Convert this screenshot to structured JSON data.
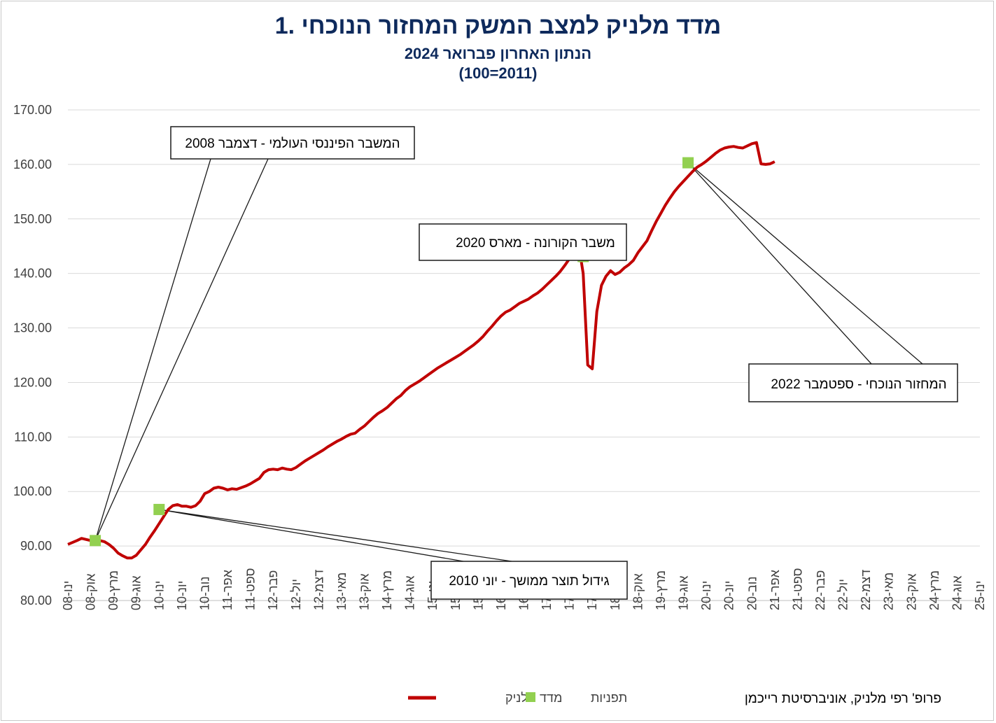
{
  "chart_data": {
    "type": "line",
    "title": "1. מדד מלניק למצב המשק המחזור הנוכחי",
    "subtitle": "הנתון האחרון פברואר 2024",
    "subtitle2": "(100=2011)",
    "ylim": [
      80,
      170
    ],
    "yticks": [
      "80.00",
      "90.00",
      "100.00",
      "110.00",
      "120.00",
      "130.00",
      "140.00",
      "150.00",
      "160.00",
      "170.00"
    ],
    "xticks": [
      "ינו-08",
      "אוק-08",
      "מרץ-09",
      "אוג-09",
      "ינו-10",
      "יונ-10",
      "נוב-10",
      "אפר-11",
      "ספט-11",
      "פבר-12",
      "יול-12",
      "דצמ-12",
      "מאי-13",
      "אוק-13",
      "מרץ-14",
      "אוג-14",
      "ינו-15",
      "יונ-15",
      "נוב-15",
      "אפר-16",
      "ספט-16",
      "פבר-17",
      "יול-17",
      "דצמ-17",
      "מאי-18",
      "אוק-18",
      "מרץ-19",
      "אוג-19",
      "ינו-20",
      "יונ-20",
      "נוב-20",
      "אפר-21",
      "ספט-21",
      "פבר-22",
      "יול-22",
      "דצמ-22",
      "מאי-23",
      "אוק-23",
      "מרץ-24",
      "אוג-24",
      "ינו-25"
    ],
    "series": [
      {
        "name": "מדד מלניק",
        "color": "#c00000",
        "points": [
          [
            0,
            90.3
          ],
          [
            2,
            91.0
          ],
          [
            3,
            91.4
          ],
          [
            4,
            91.2
          ],
          [
            5,
            91.0
          ],
          [
            6,
            91.5
          ],
          [
            7,
            91.0
          ],
          [
            8,
            90.8
          ],
          [
            9,
            90.3
          ],
          [
            10,
            89.6
          ],
          [
            11,
            88.7
          ],
          [
            12,
            88.2
          ],
          [
            13,
            87.8
          ],
          [
            14,
            87.8
          ],
          [
            15,
            88.3
          ],
          [
            16,
            89.3
          ],
          [
            17,
            90.3
          ],
          [
            18,
            91.6
          ],
          [
            19,
            92.8
          ],
          [
            20,
            94.1
          ],
          [
            21,
            95.4
          ],
          [
            22,
            96.7
          ],
          [
            23,
            97.4
          ],
          [
            24,
            97.6
          ],
          [
            25,
            97.3
          ],
          [
            26,
            97.3
          ],
          [
            27,
            97.1
          ],
          [
            28,
            97.4
          ],
          [
            29,
            98.2
          ],
          [
            30,
            99.6
          ],
          [
            31,
            100.0
          ],
          [
            32,
            100.6
          ],
          [
            33,
            100.8
          ],
          [
            34,
            100.6
          ],
          [
            35,
            100.3
          ],
          [
            36,
            100.5
          ],
          [
            37,
            100.4
          ],
          [
            38,
            100.7
          ],
          [
            39,
            101.0
          ],
          [
            40,
            101.4
          ],
          [
            41,
            101.9
          ],
          [
            42,
            102.4
          ],
          [
            43,
            103.5
          ],
          [
            44,
            104.0
          ],
          [
            45,
            104.1
          ],
          [
            46,
            104.0
          ],
          [
            47,
            104.3
          ],
          [
            48,
            104.1
          ],
          [
            49,
            104.0
          ],
          [
            50,
            104.4
          ],
          [
            51,
            105.0
          ],
          [
            52,
            105.6
          ],
          [
            53,
            106.1
          ],
          [
            54,
            106.6
          ],
          [
            55,
            107.1
          ],
          [
            56,
            107.6
          ],
          [
            57,
            108.2
          ],
          [
            58,
            108.7
          ],
          [
            59,
            109.2
          ],
          [
            60,
            109.6
          ],
          [
            61,
            110.1
          ],
          [
            62,
            110.5
          ],
          [
            63,
            110.7
          ],
          [
            64,
            111.4
          ],
          [
            65,
            112.0
          ],
          [
            66,
            112.8
          ],
          [
            67,
            113.6
          ],
          [
            68,
            114.3
          ],
          [
            69,
            114.8
          ],
          [
            70,
            115.4
          ],
          [
            71,
            116.2
          ],
          [
            72,
            117.0
          ],
          [
            73,
            117.6
          ],
          [
            74,
            118.5
          ],
          [
            75,
            119.2
          ],
          [
            76,
            119.7
          ],
          [
            77,
            120.2
          ],
          [
            78,
            120.8
          ],
          [
            79,
            121.4
          ],
          [
            80,
            122.0
          ],
          [
            81,
            122.6
          ],
          [
            82,
            123.1
          ],
          [
            83,
            123.6
          ],
          [
            84,
            124.1
          ],
          [
            85,
            124.6
          ],
          [
            86,
            125.1
          ],
          [
            87,
            125.7
          ],
          [
            88,
            126.3
          ],
          [
            89,
            126.9
          ],
          [
            90,
            127.6
          ],
          [
            91,
            128.4
          ],
          [
            92,
            129.4
          ],
          [
            93,
            130.3
          ],
          [
            94,
            131.3
          ],
          [
            95,
            132.2
          ],
          [
            96,
            132.9
          ],
          [
            97,
            133.3
          ],
          [
            98,
            133.9
          ],
          [
            99,
            134.5
          ],
          [
            100,
            134.9
          ],
          [
            101,
            135.3
          ],
          [
            102,
            135.9
          ],
          [
            103,
            136.4
          ],
          [
            104,
            137.1
          ],
          [
            105,
            137.9
          ],
          [
            106,
            138.7
          ],
          [
            107,
            139.5
          ],
          [
            108,
            140.4
          ],
          [
            109,
            141.5
          ],
          [
            110,
            142.7
          ],
          [
            111,
            144.0
          ],
          [
            112,
            145.3
          ],
          [
            113,
            140.0
          ],
          [
            114,
            123.2
          ],
          [
            115,
            122.5
          ],
          [
            116,
            133.0
          ],
          [
            117,
            137.8
          ],
          [
            118,
            139.5
          ],
          [
            119,
            140.5
          ],
          [
            120,
            139.8
          ],
          [
            121,
            140.2
          ],
          [
            122,
            141.0
          ],
          [
            123,
            141.6
          ],
          [
            124,
            142.4
          ],
          [
            125,
            143.8
          ],
          [
            126,
            144.9
          ],
          [
            127,
            146.0
          ],
          [
            128,
            147.8
          ],
          [
            129,
            149.5
          ],
          [
            130,
            151.0
          ],
          [
            131,
            152.5
          ],
          [
            132,
            153.8
          ],
          [
            133,
            155.0
          ],
          [
            134,
            156.0
          ],
          [
            135,
            156.9
          ],
          [
            136,
            157.8
          ],
          [
            137,
            158.7
          ],
          [
            138,
            159.5
          ],
          [
            139,
            160.0
          ],
          [
            140,
            160.6
          ],
          [
            141,
            161.3
          ],
          [
            142,
            162.0
          ],
          [
            143,
            162.6
          ],
          [
            144,
            163.0
          ],
          [
            145,
            163.2
          ],
          [
            146,
            163.3
          ],
          [
            147,
            163.1
          ],
          [
            148,
            163.0
          ],
          [
            149,
            163.4
          ],
          [
            150,
            163.8
          ],
          [
            151,
            164.0
          ],
          [
            152,
            160.1
          ],
          [
            153,
            160.0
          ],
          [
            154,
            160.1
          ],
          [
            155,
            160.5
          ]
        ]
      },
      {
        "name": "תפניות",
        "color": "#92d050",
        "points": [
          [
            6,
            91.0
          ],
          [
            20,
            96.7
          ],
          [
            113,
            143.1
          ],
          [
            136,
            160.3
          ]
        ]
      }
    ],
    "annotations": [
      {
        "label": "המשבר הפיננסי העולמי - דצמבר 2008"
      },
      {
        "label": "גידול תוצר ממושך - יוני 2010"
      },
      {
        "label": "משבר הקורונה - מארס 2020"
      },
      {
        "label": "המחזור הנוכחי - ספטמבר 2022"
      }
    ],
    "legend_position": "bottom",
    "grid": true
  },
  "credit": "פרופ' רפי מלניק, אוניברסיטת רייכמן"
}
